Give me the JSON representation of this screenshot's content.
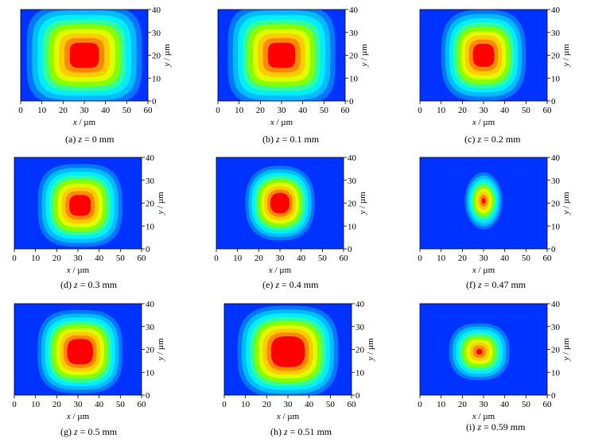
{
  "figure": {
    "colormap": [
      "#0033ff",
      "#0077ff",
      "#00bbff",
      "#00eeff",
      "#33ff99",
      "#88ff00",
      "#ddff00",
      "#ffcc00",
      "#ff8800",
      "#ff0000"
    ]
  },
  "chart_data": [
    {
      "type": "heatmap",
      "caption_prefix": "(a) ",
      "caption_var": "z",
      "caption_value": " = 0 mm",
      "xlabel_var": "x",
      "xlabel_unit": " / µm",
      "ylabel_var": "y",
      "ylabel_unit": " / µm",
      "xlim": [
        0,
        60
      ],
      "ylim": [
        0,
        40
      ],
      "xticks": [
        "0",
        "10",
        "20",
        "30",
        "40",
        "50",
        "60"
      ],
      "yticks": [
        "0",
        "10",
        "20",
        "30",
        "40"
      ],
      "spot": {
        "cx": 30,
        "cy": 20,
        "rx": 15,
        "ry": 12,
        "n": 4,
        "peak": 1.0,
        "plateau": 0.8
      }
    },
    {
      "type": "heatmap",
      "caption_prefix": "(b) ",
      "caption_var": "z",
      "caption_value": " = 0.1 mm",
      "xlabel_var": "x",
      "xlabel_unit": " / µm",
      "ylabel_var": "y",
      "ylabel_unit": " / µm",
      "xlim": [
        0,
        60
      ],
      "ylim": [
        0,
        40
      ],
      "xticks": [
        "0",
        "10",
        "20",
        "30",
        "40",
        "50",
        "60"
      ],
      "yticks": [
        "0",
        "10",
        "20",
        "30",
        "40"
      ],
      "spot": {
        "cx": 30,
        "cy": 20,
        "rx": 14,
        "ry": 12,
        "n": 4,
        "peak": 1.0,
        "plateau": 0.8
      }
    },
    {
      "type": "heatmap",
      "caption_prefix": "(c) ",
      "caption_var": "z",
      "caption_value": " = 0.2 mm",
      "xlabel_var": "x",
      "xlabel_unit": " / µm",
      "ylabel_var": "y",
      "ylabel_unit": " / µm",
      "xlim": [
        0,
        60
      ],
      "ylim": [
        0,
        40
      ],
      "xticks": [
        "0",
        "10",
        "20",
        "30",
        "40",
        "50",
        "60"
      ],
      "yticks": [
        "0",
        "10",
        "20",
        "30",
        "40"
      ],
      "spot": {
        "cx": 30,
        "cy": 20,
        "rx": 11,
        "ry": 11,
        "n": 3,
        "peak": 1.0,
        "plateau": 0.8
      }
    },
    {
      "type": "heatmap",
      "caption_prefix": "(d) ",
      "caption_var": "z",
      "caption_value": " = 0.3 mm",
      "xlabel_var": "x",
      "xlabel_unit": " / µm",
      "ylabel_var": "y",
      "ylabel_unit": " / µm",
      "xlim": [
        0,
        60
      ],
      "ylim": [
        0,
        40
      ],
      "xticks": [
        "0",
        "10",
        "20",
        "30",
        "40",
        "50",
        "60"
      ],
      "yticks": [
        "0",
        "10",
        "20",
        "30",
        "40"
      ],
      "spot": {
        "cx": 31,
        "cy": 19,
        "rx": 11,
        "ry": 10,
        "n": 3,
        "peak": 1.0,
        "plateau": 0.8
      }
    },
    {
      "type": "heatmap",
      "caption_prefix": "(e) ",
      "caption_var": "z",
      "caption_value": " = 0.4 mm",
      "xlabel_var": "x",
      "xlabel_unit": " / µm",
      "ylabel_var": "y",
      "ylabel_unit": " / µm",
      "xlim": [
        0,
        60
      ],
      "ylim": [
        0,
        40
      ],
      "xticks": [
        "0",
        "10",
        "20",
        "30",
        "40",
        "50",
        "60"
      ],
      "yticks": [
        "0",
        "10",
        "20",
        "30",
        "40"
      ],
      "spot": {
        "cx": 30,
        "cy": 20,
        "rx": 9,
        "ry": 9,
        "n": 2.5,
        "peak": 1.0,
        "plateau": 0.78
      }
    },
    {
      "type": "heatmap",
      "caption_prefix": "(f) ",
      "caption_var": "z",
      "caption_value": " = 0.47 mm",
      "xlabel_var": "x",
      "xlabel_unit": " / µm",
      "ylabel_var": "y",
      "ylabel_unit": " / µm",
      "xlim": [
        0,
        60
      ],
      "ylim": [
        0,
        40
      ],
      "xticks": [
        "0",
        "10",
        "20",
        "30",
        "40",
        "50",
        "60"
      ],
      "yticks": [
        "0",
        "10",
        "20",
        "30",
        "40"
      ],
      "spot": {
        "cx": 30,
        "cy": 21,
        "rx": 5,
        "ry": 7,
        "n": 2,
        "peak": 1.0,
        "plateau": 0.95
      }
    },
    {
      "type": "heatmap",
      "caption_prefix": "(g) ",
      "caption_var": "z",
      "caption_value": " = 0.5 mm",
      "xlabel_var": "x",
      "xlabel_unit": " / µm",
      "ylabel_var": "y",
      "ylabel_unit": " / µm",
      "xlim": [
        0,
        60
      ],
      "ylim": [
        0,
        40
      ],
      "xticks": [
        "0",
        "10",
        "20",
        "30",
        "40",
        "50",
        "60"
      ],
      "yticks": [
        "0",
        "10",
        "20",
        "30",
        "40"
      ],
      "spot": {
        "cx": 31,
        "cy": 19,
        "rx": 11,
        "ry": 10,
        "n": 3,
        "peak": 1.0,
        "plateau": 0.75
      }
    },
    {
      "type": "heatmap",
      "caption_prefix": "(h) ",
      "caption_var": "z",
      "caption_value": " = 0.51 mm",
      "xlabel_var": "x",
      "xlabel_unit": " / µm",
      "ylabel_var": "y",
      "ylabel_unit": " / µm",
      "xlim": [
        0,
        60
      ],
      "ylim": [
        0,
        40
      ],
      "xticks": [
        "0",
        "10",
        "20",
        "30",
        "40",
        "50",
        "60"
      ],
      "yticks": [
        "0",
        "10",
        "20",
        "30",
        "40"
      ],
      "spot": {
        "cx": 30,
        "cy": 19,
        "rx": 13,
        "ry": 11,
        "n": 3,
        "peak": 1.0,
        "plateau": 0.72
      }
    },
    {
      "type": "heatmap",
      "caption_prefix": "(i) ",
      "caption_var": "z",
      "caption_value": " = 0.59 mm",
      "xlabel_var": "x",
      "xlabel_unit": " / µm",
      "ylabel_var": "y",
      "ylabel_unit": " / µm",
      "xlim": [
        0,
        60
      ],
      "ylim": [
        0,
        40
      ],
      "xticks": [
        "0",
        "10",
        "20",
        "30",
        "40",
        "50",
        "60"
      ],
      "yticks": [
        "0",
        "10",
        "20",
        "30",
        "40"
      ],
      "spot": {
        "cx": 28,
        "cy": 19,
        "rx": 8,
        "ry": 7,
        "n": 2.5,
        "peak": 1.0,
        "plateau": 0.95
      }
    }
  ]
}
